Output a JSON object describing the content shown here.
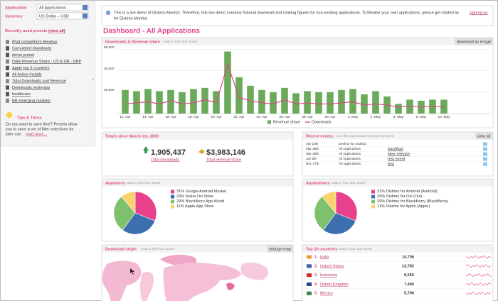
{
  "sidebar": {
    "application_label": "Application",
    "application_value": "All Applications",
    "currency_label": "Currency",
    "currency_value": "US Dollar – USD",
    "presets_title": "Recently used presets",
    "view_all": "(view all)",
    "presets": [
      "iPad competitors Benelux",
      "Cumulated downloads",
      "demo preset",
      "Daily Revenue Share - US & GB - GBP",
      "Apple top 5 countries",
      "All Active Installs",
      "Total Downloads and Revenue",
      "Downloads yesterday",
      "healthcare",
      "BB emerging markets"
    ],
    "tips_title": "Tips & Tricks",
    "tips_lines": [
      "Do you want to save time? Presets allow",
      "you to store a set of filter selections for",
      "later use."
    ],
    "read_more": "read more..."
  },
  "banner": {
    "line1": "This is a live demo of Distimo Monitor. Therefore, this live demo contains fictional download and ranking figures for non-existing applications. To Monitor your own applications, please get started by",
    "link": "signing up",
    "line2": "for Distimo Monitor."
  },
  "heading": "Dashboard - All Applications",
  "chart_data": [
    {
      "type": "bar",
      "title": "Downloads & Revenue share",
      "note": "Data is from last month",
      "button": "download as image",
      "categories": [
        "12. Apr",
        null,
        "14. Apr",
        null,
        "16. Apr",
        null,
        "18. Apr",
        null,
        "20. Apr",
        null,
        "22. Apr",
        null,
        "24. Apr",
        null,
        "26. Apr",
        null,
        "28. Apr",
        null,
        "30. Apr",
        null,
        "2. May",
        null,
        "4. May",
        null,
        "6. May",
        null,
        "8. May",
        null,
        "10. May"
      ],
      "series": [
        {
          "name": "Revenue share",
          "type": "bar",
          "color": "#6aaa5a",
          "values": [
            22000,
            21000,
            23000,
            21000,
            22000,
            20000,
            23000,
            24000,
            21000,
            58000,
            34000,
            26000,
            22000,
            20000,
            24000,
            19000,
            21000,
            20000,
            20000,
            22000,
            23000,
            18000,
            21000,
            16000,
            9000,
            13000,
            12000,
            13000,
            13000
          ]
        },
        {
          "name": "Downloads",
          "type": "line",
          "color": "#e0468a",
          "values": [
            9000,
            10000,
            11000,
            9000,
            12000,
            9000,
            10000,
            13000,
            10000,
            46000,
            15000,
            12000,
            10000,
            9000,
            13000,
            9000,
            10000,
            9000,
            9000,
            10000,
            11000,
            8000,
            9000,
            8000,
            6000,
            7000,
            6000,
            7000,
            6000
          ]
        }
      ],
      "ylim": [
        0,
        65000
      ],
      "yticks": [
        {
          "value": 20000,
          "label": "20,000"
        },
        {
          "value": 40000,
          "label": "40,000"
        },
        {
          "value": 60000,
          "label": "60,000"
        }
      ],
      "grid": true
    },
    {
      "type": "pie",
      "title": "Appstores",
      "note": "Data is from last month",
      "categories": [
        "Google Android Market",
        "Nokia Ovi Store",
        "BlackBerry App World",
        "Apple App Store"
      ],
      "values": [
        31,
        29,
        29,
        11
      ],
      "value_labels": [
        "31%",
        "29%",
        "29%",
        "11%"
      ],
      "colors": [
        "#e8408a",
        "#3b6fb0",
        "#7fc06c",
        "#f7d36a"
      ]
    },
    {
      "type": "pie",
      "title": "Applications",
      "note": "Data is from last month",
      "categories": [
        "Distimo for Android (Android)",
        "Distimo for Ovi (Ovi)",
        "Distimo for BlackBerry (BlackBerry)",
        "Distimo for Apple (Apple)"
      ],
      "values": [
        31,
        29,
        29,
        11
      ],
      "value_labels": [
        "31%",
        "29%",
        "29%",
        "11%"
      ],
      "colors": [
        "#e8408a",
        "#3b6fb0",
        "#7fc06c",
        "#f7d36a"
      ]
    }
  ],
  "totals": {
    "title": "Totals since March 1st, 2010",
    "downloads_value": "1,905,437",
    "downloads_label": "Total downloads",
    "revenue_value": "$3,983,146",
    "revenue_label": "Total revenue share"
  },
  "events": {
    "title": "Recent events",
    "hint": "Use the tweet button to share the event",
    "view_all": "view all",
    "rows": [
      [
        "Apr 10th",
        "Decline for Android"
      ],
      [
        "Mar 26th",
        "All Applications",
        "basdfkjsl"
      ],
      [
        "Mar 26th",
        "All Applications",
        "New release"
      ],
      [
        "Jan 6th",
        "All Applications",
        "test event"
      ],
      [
        "Dec 17th",
        "All Applications",
        "test"
      ]
    ]
  },
  "download_origin": {
    "title": "Download origin",
    "note": "Data is from last month",
    "button": "enlarge map"
  },
  "top_countries": {
    "title": "Top 10 countries",
    "note": "Data is from last month",
    "rows": [
      {
        "rank": "1.",
        "country": "India",
        "value": "14,706"
      },
      {
        "rank": "2.",
        "country": "United States",
        "value": "13,782"
      },
      {
        "rank": "3.",
        "country": "Indonesia",
        "value": "8,565"
      },
      {
        "rank": "4.",
        "country": "United Kingdom",
        "value": "7,490"
      },
      {
        "rank": "5.",
        "country": "Mexico",
        "value": "5,796"
      }
    ]
  }
}
